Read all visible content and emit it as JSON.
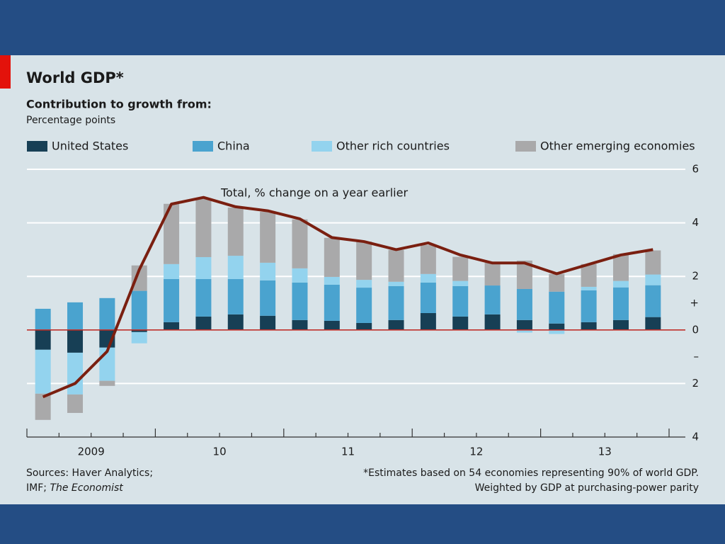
{
  "chart_data": {
    "type": "stacked-bar-line",
    "title": "World GDP*",
    "subtitle": "Contribution to growth from:",
    "unit_label": "Percentage points",
    "categories": [
      null,
      null,
      null,
      null,
      null,
      null,
      null,
      null,
      null,
      null,
      null,
      null,
      null,
      null,
      null,
      null,
      null,
      null,
      null,
      null
    ],
    "year_labels": [
      "2009",
      "10",
      "11",
      "12",
      "13"
    ],
    "series": [
      {
        "name": "United States",
        "color": "#173f55",
        "values": [
          -0.74,
          -0.85,
          -0.66,
          -0.08,
          0.29,
          0.5,
          0.58,
          0.53,
          0.37,
          0.34,
          0.26,
          0.37,
          0.63,
          0.5,
          0.58,
          0.37,
          0.24,
          0.29,
          0.37,
          0.48
        ]
      },
      {
        "name": "China",
        "color": "#4aa3cf",
        "values": [
          0.79,
          1.03,
          1.19,
          1.46,
          1.61,
          1.4,
          1.32,
          1.32,
          1.4,
          1.35,
          1.32,
          1.27,
          1.14,
          1.14,
          1.08,
          1.16,
          1.19,
          1.19,
          1.22,
          1.19
        ]
      },
      {
        "name": "Other rich countries",
        "color": "#93d3ee",
        "values": [
          -1.64,
          -1.56,
          -1.24,
          -0.42,
          0.56,
          0.82,
          0.87,
          0.66,
          0.53,
          0.29,
          0.29,
          0.16,
          0.32,
          0.19,
          0,
          -0.1,
          -0.15,
          0.13,
          0.24,
          0.4
        ]
      },
      {
        "name": "Other emerging economies",
        "color": "#a9a9aa",
        "values": [
          -0.98,
          -0.69,
          -0.19,
          0.95,
          2.25,
          2.2,
          1.8,
          1.9,
          1.83,
          1.46,
          1.43,
          1.19,
          1.08,
          0.9,
          0.85,
          1.06,
          0.66,
          0.85,
          1.0,
          0.9
        ]
      }
    ],
    "line": {
      "name": "Total, % change on a year earlier",
      "color": "#7a1f10",
      "values": [
        -2.5,
        -2.0,
        -0.8,
        2.25,
        4.7,
        4.95,
        4.6,
        4.45,
        4.15,
        3.45,
        3.3,
        3.0,
        3.25,
        2.8,
        2.5,
        2.5,
        2.1,
        2.45,
        2.8,
        3.0
      ]
    },
    "ylim": [
      -4,
      6
    ],
    "yticks": [
      6,
      4,
      2,
      {
        "value": 1,
        "label": "+"
      },
      0,
      {
        "value": -1,
        "label": "–"
      },
      {
        "value": -2,
        "label": "2"
      },
      {
        "value": -4,
        "label": "4"
      }
    ],
    "grid": true,
    "sources": [
      "Sources: Haver Analytics;",
      "IMF; ",
      "The Economist"
    ],
    "footnotes": [
      "*Estimates based on 54 economies representing 90% of world GDP.",
      "Weighted by GDP at purchasing-power parity"
    ]
  }
}
